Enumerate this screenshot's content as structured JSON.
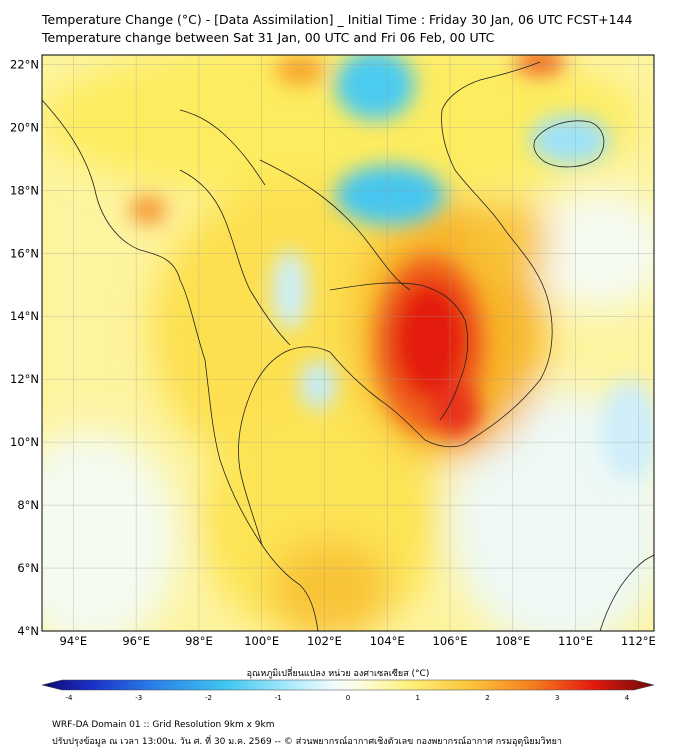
{
  "header": {
    "title_line1": "Temperature Change (°C) - [Data Assimilation] _ Initial Time : Friday 30 Jan, 06 UTC FCST+144",
    "title_line2": "Temperature change between Sat 31 Jan, 00 UTC and Fri 06 Feb, 00 UTC"
  },
  "map": {
    "lat_labels": [
      "22°N",
      "20°N",
      "18°N",
      "16°N",
      "14°N",
      "12°N",
      "10°N",
      "8°N",
      "6°N",
      "4°N"
    ],
    "lon_labels": [
      "94°E",
      "96°E",
      "98°E",
      "100°E",
      "102°E",
      "104°E",
      "106°E",
      "108°E",
      "110°E",
      "112°E"
    ],
    "lat_range": [
      4,
      22.3
    ],
    "lon_range": [
      93,
      112.5
    ],
    "grid": true,
    "colors": {
      "warm_strong": "#e41a10",
      "warm_mid": "#f6a21c",
      "warm_light": "#fde94a",
      "neutral": "#fefde0",
      "cool_light": "#b8ecfb",
      "cool_mid": "#3cc6f0"
    }
  },
  "colorbar": {
    "title": "อุณหภูมิเปลี่ยนแปลง หน่วย องศาเซลเซียส (°C)",
    "ticks": [
      "-4",
      "-3",
      "-2",
      "-1",
      "0",
      "1",
      "2",
      "3",
      "4"
    ],
    "range": [
      -4,
      4
    ]
  },
  "footer": {
    "line1": "WRF-DA Domain 01 :: Grid Resolution 9km x 9km",
    "line2": "ปรับปรุงข้อมูล ณ เวลา 13:00น. วัน ศ. ที่ 30 ม.ค. 2569 -- © ส่วนพยากรณ์อากาศเชิงตัวเลข กองพยากรณ์อากาศ กรมอุตุนิยมวิทยา"
  }
}
